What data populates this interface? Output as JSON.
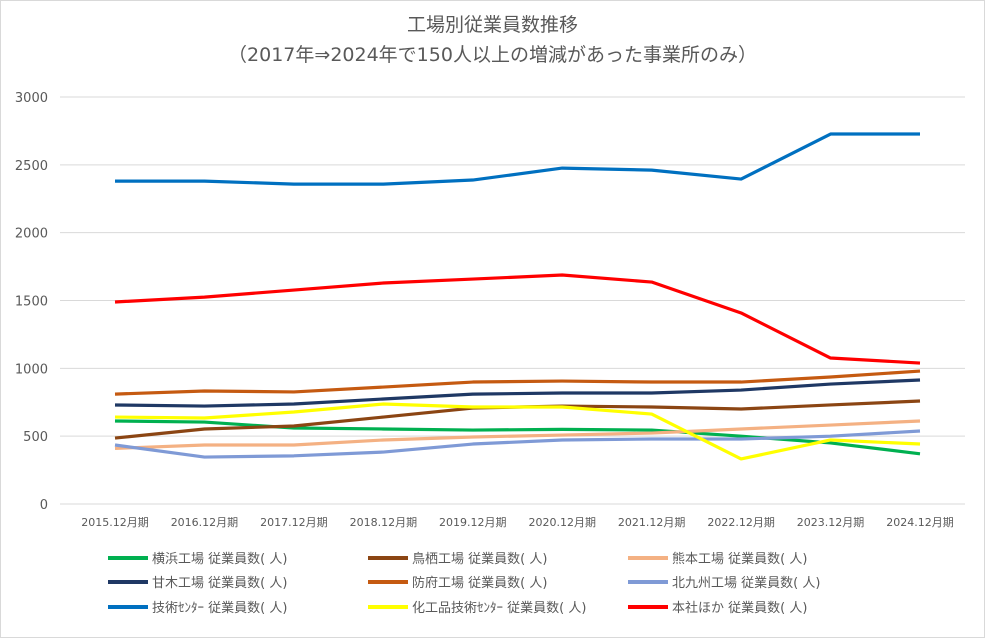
{
  "chart_data": {
    "type": "line",
    "title": "工場別従業員数推移",
    "subtitle": "（2017年⇒2024年で150人以上の増減があった事業所のみ）",
    "xlabel": "",
    "ylabel": "",
    "ylim": [
      0,
      3000
    ],
    "yticks": [
      0,
      500,
      1000,
      1500,
      2000,
      2500,
      3000
    ],
    "grid": true,
    "legend_position": "bottom",
    "categories": [
      "2015.12月期",
      "2016.12月期",
      "2017.12月期",
      "2018.12月期",
      "2019.12月期",
      "2020.12月期",
      "2021.12月期",
      "2022.12月期",
      "2023.12月期",
      "2024.12月期"
    ],
    "series": [
      {
        "name": "横浜工場 従業員数(  人)",
        "color": "#00b050",
        "values": [
          612,
          604,
          560,
          553,
          545,
          550,
          545,
          500,
          450,
          370
        ]
      },
      {
        "name": "鳥栖工場 従業員数(  人)",
        "color": "#8b4513",
        "values": [
          486,
          553,
          575,
          641,
          707,
          722,
          715,
          700,
          730,
          759
        ]
      },
      {
        "name": "熊本工場 従業員数(  人)",
        "color": "#f4b183",
        "values": [
          410,
          435,
          435,
          472,
          494,
          508,
          523,
          553,
          582,
          612
        ]
      },
      {
        "name": "甘木工場 従業員数(  人)",
        "color": "#1f3864",
        "values": [
          730,
          722,
          737,
          774,
          810,
          818,
          818,
          840,
          884,
          914
        ]
      },
      {
        "name": "防府工場 従業員数(  人)",
        "color": "#c55a11",
        "values": [
          810,
          833,
          826,
          862,
          899,
          906,
          899,
          899,
          936,
          980
        ]
      },
      {
        "name": "北九州工場 従業員数(  人)",
        "color": "#7f9ad6",
        "values": [
          435,
          346,
          355,
          383,
          442,
          472,
          479,
          479,
          500,
          538
        ]
      },
      {
        "name": "技術ｾﾝﾀｰ 従業員数(  人)",
        "color": "#0070c0",
        "values": [
          2380,
          2380,
          2358,
          2358,
          2388,
          2476,
          2461,
          2395,
          2727,
          2727
        ]
      },
      {
        "name": "化工品技術ｾﾝﾀｰ 従業員数(  人)",
        "color": "#ffff00",
        "values": [
          641,
          634,
          678,
          737,
          715,
          715,
          663,
          332,
          472,
          442
        ]
      },
      {
        "name": "本社ほか 従業員数(  人)",
        "color": "#ff0000",
        "values": [
          1489,
          1525,
          1577,
          1629,
          1658,
          1688,
          1636,
          1408,
          1076,
          1039
        ]
      }
    ]
  }
}
